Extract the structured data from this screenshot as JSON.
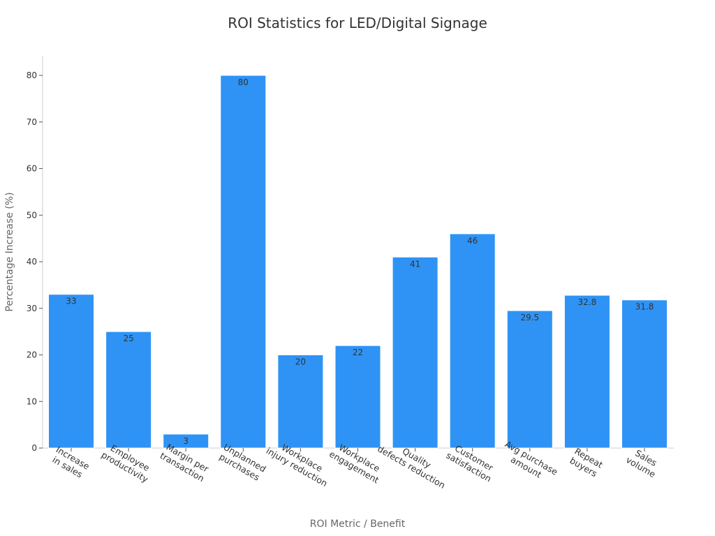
{
  "chart_data": {
    "type": "bar",
    "title": "ROI Statistics for LED/Digital Signage",
    "xlabel": "ROI Metric / Benefit",
    "ylabel": "Percentage Increase (%)",
    "ylim": [
      0,
      83
    ],
    "yticks": [
      0,
      10,
      20,
      30,
      40,
      50,
      60,
      70,
      80
    ],
    "grid": false,
    "categories": [
      [
        "Increase",
        "in sales"
      ],
      [
        "Employee",
        "productivity"
      ],
      [
        "Margin per",
        "transaction"
      ],
      [
        "Unplanned",
        "purchases"
      ],
      [
        "Workplace",
        "injury reduction"
      ],
      [
        "Workplace",
        "engagement"
      ],
      [
        "Quality",
        "defects reduction"
      ],
      [
        "Customer",
        "satisfaction"
      ],
      [
        "Avg purchase",
        "amount"
      ],
      [
        "Repeat",
        "buyers"
      ],
      [
        "Sales",
        "volume"
      ]
    ],
    "values": [
      33,
      25,
      3,
      80,
      20,
      22,
      41,
      46,
      29.5,
      32.8,
      31.8
    ],
    "value_labels": [
      "33",
      "25",
      "3",
      "80",
      "20",
      "22",
      "41",
      "46",
      "29.5",
      "32.8",
      "31.8"
    ],
    "colors": {
      "bar": "#2e93f5",
      "bar_edge": "#ffffff"
    }
  }
}
